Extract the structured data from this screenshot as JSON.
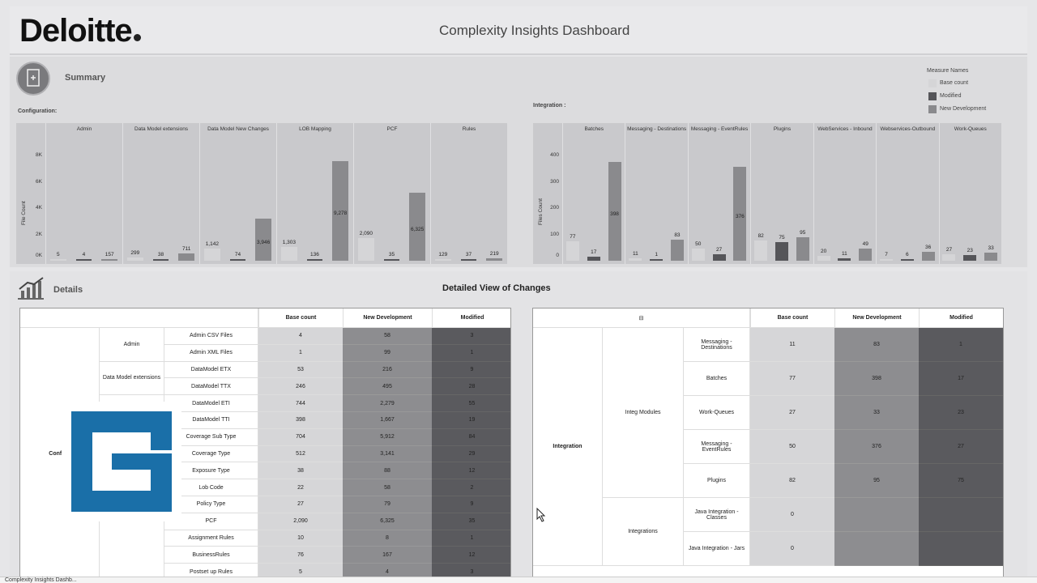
{
  "header": {
    "logo": "Deloitte",
    "title": "Complexity Insights Dashboard"
  },
  "summary": {
    "title": "Summary",
    "config_label": "Configuration:",
    "integration_label": "Integration :",
    "legend": {
      "title": "Measure Names",
      "items": [
        {
          "label": "Base count",
          "color": "#d5d5d7"
        },
        {
          "label": "Modified",
          "color": "#555559"
        },
        {
          "label": "New Development",
          "color": "#8a8a8d"
        }
      ]
    },
    "config_chart": {
      "ylabel": "File Count",
      "ticks": [
        "8K",
        "6K",
        "4K",
        "2K",
        "0K"
      ],
      "columns": [
        {
          "name": "Admin",
          "values": {
            "base": 5,
            "modified": 4,
            "new": 157
          }
        },
        {
          "name": "Data Model extensions",
          "values": {
            "base": 299,
            "modified": 38,
            "new": 711
          }
        },
        {
          "name": "Data Model New Changes",
          "values": {
            "base": 1142,
            "modified": 74,
            "new": 3946
          }
        },
        {
          "name": "LOB Mapping",
          "values": {
            "base": 1303,
            "modified": 136,
            "new": 9278
          }
        },
        {
          "name": "PCF",
          "values": {
            "base": 2090,
            "modified": 35,
            "new": 6325
          }
        },
        {
          "name": "Rules",
          "values": {
            "base": 129,
            "modified": 37,
            "new": 219
          }
        }
      ],
      "labels": [
        [
          "5",
          "4",
          "157"
        ],
        [
          "299",
          "38",
          "711"
        ],
        [
          "1,142",
          "74",
          "3,946"
        ],
        [
          "1,303",
          "136",
          "9,278"
        ],
        [
          "2,090",
          "35",
          "6,325"
        ],
        [
          "129",
          "37",
          "219"
        ]
      ],
      "ymax": 9500
    },
    "integration_chart": {
      "ylabel": "Files Count",
      "ticks": [
        "400",
        "300",
        "200",
        "100",
        "0"
      ],
      "columns": [
        {
          "name": "Batches",
          "values": {
            "base": 77,
            "modified": 17,
            "new": 398
          }
        },
        {
          "name": "Messaging - Destinations",
          "values": {
            "base": 11,
            "modified": 1,
            "new": 83
          }
        },
        {
          "name": "Messaging - EventRules",
          "values": {
            "base": 50,
            "modified": 27,
            "new": 376
          }
        },
        {
          "name": "Plugins",
          "values": {
            "base": 82,
            "modified": 75,
            "new": 95
          }
        },
        {
          "name": "WebServices - Inbound",
          "values": {
            "base": 20,
            "modified": 11,
            "new": 49
          }
        },
        {
          "name": "Webservices-Outbound",
          "values": {
            "base": 7,
            "modified": 6,
            "new": 36
          }
        },
        {
          "name": "Work-Queues",
          "values": {
            "base": 27,
            "modified": 23,
            "new": 33
          }
        }
      ],
      "labels": [
        [
          "77",
          "17",
          "398"
        ],
        [
          "11",
          "1",
          "83"
        ],
        [
          "50",
          "27",
          "376"
        ],
        [
          "82",
          "75",
          "95"
        ],
        [
          "20",
          "11",
          "49"
        ],
        [
          "7",
          "6",
          "36"
        ],
        [
          "27",
          "23",
          "33"
        ]
      ],
      "ymax": 410
    }
  },
  "details": {
    "title": "Details",
    "center_title": "Detailed View of Changes",
    "left_table": {
      "headers": [
        "Base count",
        "New Development",
        "Modified"
      ],
      "group_label": "Configu",
      "rows": [
        {
          "cat": "Admin",
          "sub": "Admin CSV Files",
          "base": "4",
          "new": "58",
          "mod": "3"
        },
        {
          "cat": "",
          "sub": "Admin XML Files",
          "base": "1",
          "new": "99",
          "mod": "1"
        },
        {
          "cat": "Data Model extensions",
          "sub": "DataModel ETX",
          "base": "53",
          "new": "216",
          "mod": "9"
        },
        {
          "cat": "",
          "sub": "DataModel TTX",
          "base": "246",
          "new": "495",
          "mod": "28"
        },
        {
          "cat": "",
          "sub": "DataModel ETI",
          "base": "744",
          "new": "2,279",
          "mod": "55"
        },
        {
          "cat": "",
          "sub": "DataModel TTI",
          "base": "398",
          "new": "1,667",
          "mod": "19"
        },
        {
          "cat": "",
          "sub": "Coverage Sub Type",
          "base": "704",
          "new": "5,912",
          "mod": "84"
        },
        {
          "cat": "",
          "sub": "Coverage Type",
          "base": "512",
          "new": "3,141",
          "mod": "29"
        },
        {
          "cat": "",
          "sub": "Exposure Type",
          "base": "38",
          "new": "88",
          "mod": "12"
        },
        {
          "cat": "",
          "sub": "Lob Code",
          "base": "22",
          "new": "58",
          "mod": "2"
        },
        {
          "cat": "",
          "sub": "Policy Type",
          "base": "27",
          "new": "79",
          "mod": "9"
        },
        {
          "cat": "",
          "sub": "PCF",
          "base": "2,090",
          "new": "6,325",
          "mod": "35"
        },
        {
          "cat": "",
          "sub": "Assignment Rules",
          "base": "10",
          "new": "8",
          "mod": "1"
        },
        {
          "cat": "",
          "sub": "BusinessRules",
          "base": "76",
          "new": "167",
          "mod": "12"
        },
        {
          "cat": "",
          "sub": "Postset up Rules",
          "base": "5",
          "new": "4",
          "mod": "3"
        }
      ]
    },
    "right_table": {
      "headers": [
        "Base count",
        "New Development",
        "Modified"
      ],
      "collapse_icon": "⊟",
      "group_label": "Integration",
      "sub_groups": [
        "Integ Modules",
        "Integrations"
      ],
      "rows": [
        {
          "sub": "Messaging - Destinations",
          "base": "11",
          "new": "83",
          "mod": "1"
        },
        {
          "sub": "Batches",
          "base": "77",
          "new": "398",
          "mod": "17"
        },
        {
          "sub": "Work-Queues",
          "base": "27",
          "new": "33",
          "mod": "23"
        },
        {
          "sub": "Messaging - EventRules",
          "base": "50",
          "new": "376",
          "mod": "27"
        },
        {
          "sub": "Plugins",
          "base": "82",
          "new": "95",
          "mod": "75"
        },
        {
          "sub": "Java Integration - Classes",
          "base": "0",
          "new": "",
          "mod": ""
        },
        {
          "sub": "Java Integration - Jars",
          "base": "0",
          "new": "",
          "mod": ""
        }
      ]
    }
  },
  "status_text": "Complexity Insights Dashb..."
}
